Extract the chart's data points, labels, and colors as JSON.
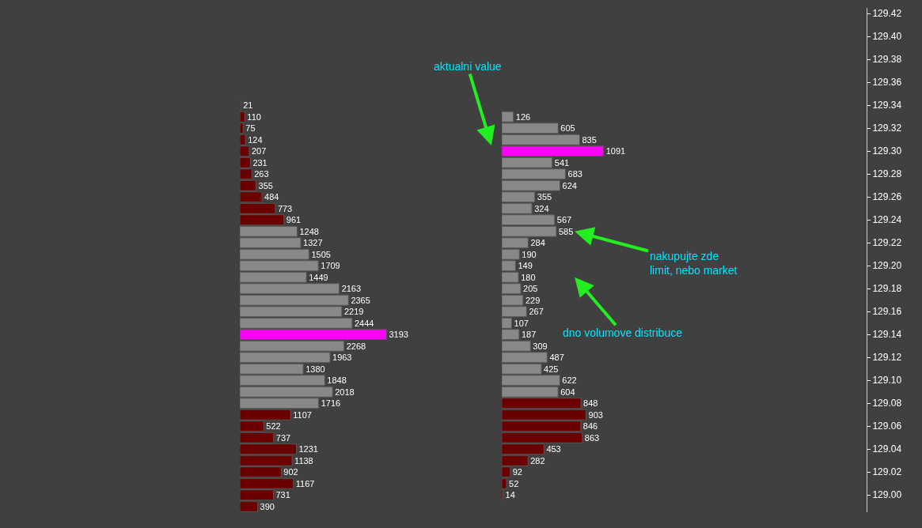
{
  "chart_data": [
    {
      "type": "bar",
      "orientation": "horizontal",
      "data_labels": true,
      "tick_labels": false,
      "categories": [
        "129.42",
        null,
        "129.40",
        null,
        "129.38",
        null,
        "129.36",
        null,
        "129.34",
        null,
        "129.32",
        null,
        "129.30",
        null,
        "129.28",
        null,
        "129.26",
        null,
        "129.24",
        null,
        "129.22",
        null,
        "129.20",
        null,
        "129.18",
        null,
        "129.16",
        null,
        "129.14",
        null,
        "129.12",
        null,
        "129.10",
        null,
        "129.08",
        null,
        "129.06",
        null,
        "129.04",
        null,
        "129.02",
        null,
        "129.00",
        null
      ],
      "values": [
        null,
        null,
        null,
        null,
        null,
        null,
        null,
        null,
        21,
        110,
        75,
        124,
        207,
        231,
        263,
        355,
        484,
        773,
        961,
        1248,
        1327,
        1505,
        1709,
        1449,
        2163,
        2365,
        2219,
        2444,
        3193,
        2268,
        1963,
        1380,
        1848,
        2018,
        1716,
        1107,
        522,
        737,
        1231,
        1138,
        902,
        1167,
        731,
        390
      ],
      "colors": [
        null,
        null,
        null,
        null,
        null,
        null,
        null,
        null,
        "#6b0000",
        "#6b0000",
        "#6b0000",
        "#6b0000",
        "#6b0000",
        "#6b0000",
        "#6b0000",
        "#6b0000",
        "#6b0000",
        "#6b0000",
        "#6b0000",
        "#888888",
        "#888888",
        "#888888",
        "#888888",
        "#888888",
        "#888888",
        "#888888",
        "#888888",
        "#888888",
        "#ff00ff",
        "#888888",
        "#888888",
        "#888888",
        "#888888",
        "#888888",
        "#888888",
        "#6b0000",
        "#6b0000",
        "#6b0000",
        "#6b0000",
        "#6b0000",
        "#6b0000",
        "#6b0000",
        "#6b0000",
        "#6b0000"
      ]
    },
    {
      "type": "bar",
      "orientation": "horizontal",
      "data_labels": true,
      "tick_labels": "y",
      "categories": [
        "129.42",
        null,
        "129.40",
        null,
        "129.38",
        null,
        "129.36",
        null,
        "129.34",
        null,
        "129.32",
        null,
        "129.30",
        null,
        "129.28",
        null,
        "129.26",
        null,
        "129.24",
        null,
        "129.22",
        null,
        "129.20",
        null,
        "129.18",
        null,
        "129.16",
        null,
        "129.14",
        null,
        "129.12",
        null,
        "129.10",
        null,
        "129.08",
        null,
        "129.06",
        null,
        "129.04",
        null,
        "129.02",
        null,
        "129.00",
        null
      ],
      "values": [
        null,
        null,
        null,
        null,
        null,
        null,
        null,
        null,
        null,
        126,
        605,
        835,
        1091,
        541,
        683,
        624,
        355,
        324,
        567,
        585,
        284,
        190,
        149,
        180,
        205,
        229,
        267,
        107,
        187,
        309,
        487,
        425,
        622,
        604,
        848,
        903,
        846,
        863,
        453,
        282,
        92,
        52,
        14,
        null
      ],
      "colors": [
        null,
        null,
        null,
        null,
        null,
        null,
        null,
        null,
        null,
        "#888888",
        "#888888",
        "#888888",
        "#ff00ff",
        "#888888",
        "#888888",
        "#888888",
        "#888888",
        "#888888",
        "#888888",
        "#888888",
        "#888888",
        "#888888",
        "#888888",
        "#888888",
        "#888888",
        "#888888",
        "#888888",
        "#888888",
        "#888888",
        "#888888",
        "#888888",
        "#888888",
        "#888888",
        "#888888",
        "#6b0000",
        "#6b0000",
        "#6b0000",
        "#6b0000",
        "#6b0000",
        "#6b0000",
        "#6b0000",
        "#6b0000",
        "#6b0000",
        null
      ],
      "annotations": [
        "aktualni value",
        "nakupujte zde\nlimit, nebo market",
        "dno volumove distribuce"
      ]
    }
  ]
}
